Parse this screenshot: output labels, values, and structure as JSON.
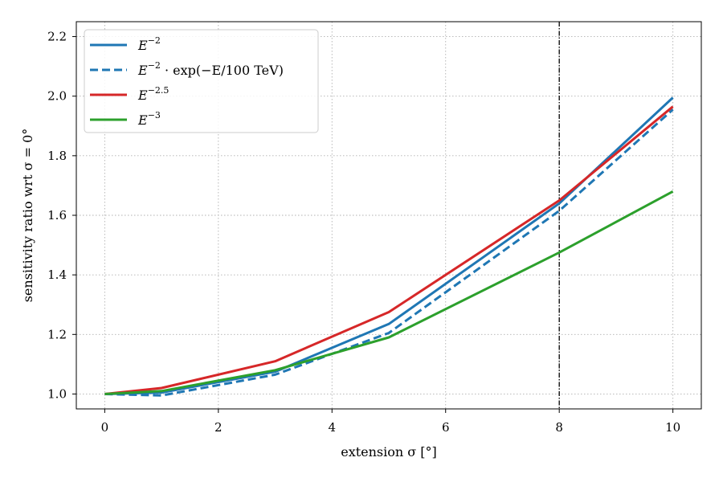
{
  "chart_data": {
    "type": "line",
    "title": "",
    "xlabel": "extension σ [°]",
    "ylabel": "sensitivity ratio wrt σ = 0°",
    "xlim": [
      -0.5,
      10.5
    ],
    "ylim": [
      0.95,
      2.25
    ],
    "xticks": [
      0,
      2,
      4,
      6,
      8,
      10
    ],
    "yticks": [
      1.0,
      1.2,
      1.4,
      1.6,
      1.8,
      2.0,
      2.2
    ],
    "xtick_labels": [
      "0",
      "2",
      "4",
      "6",
      "8",
      "10"
    ],
    "ytick_labels": [
      "1.0",
      "1.2",
      "1.4",
      "1.6",
      "1.8",
      "2.0",
      "2.2"
    ],
    "grid": true,
    "legend_position": "top-left",
    "vline": {
      "x": 8,
      "style": "dashdot",
      "color": "#000000"
    },
    "series": [
      {
        "name": "E^{-2}",
        "legend_base": "E",
        "legend_sup": "−2",
        "legend_rest": "",
        "color": "#1f77b4",
        "dashed": false,
        "x": [
          0,
          1,
          3,
          5,
          8,
          10
        ],
        "y": [
          1.0,
          1.005,
          1.075,
          1.235,
          1.64,
          1.995
        ]
      },
      {
        "name": "E^{-2}·exp(−E/100 TeV)",
        "legend_base": "E",
        "legend_sup": "−2",
        "legend_rest": " · exp(−E/100 TeV)",
        "color": "#1f77b4",
        "dashed": true,
        "x": [
          0,
          1,
          3,
          5,
          8,
          10
        ],
        "y": [
          1.0,
          0.995,
          1.065,
          1.205,
          1.615,
          1.955
        ]
      },
      {
        "name": "E^{-2.5}",
        "legend_base": "E",
        "legend_sup": "−2.5",
        "legend_rest": "",
        "color": "#d62728",
        "dashed": false,
        "x": [
          0,
          1,
          3,
          5,
          8,
          10
        ],
        "y": [
          1.0,
          1.02,
          1.11,
          1.275,
          1.65,
          1.965
        ]
      },
      {
        "name": "E^{-3}",
        "legend_base": "E",
        "legend_sup": "−3",
        "legend_rest": "",
        "color": "#2ca02c",
        "dashed": false,
        "x": [
          0,
          1,
          3,
          5,
          8,
          10
        ],
        "y": [
          1.0,
          1.01,
          1.08,
          1.19,
          1.475,
          1.68
        ]
      }
    ]
  }
}
